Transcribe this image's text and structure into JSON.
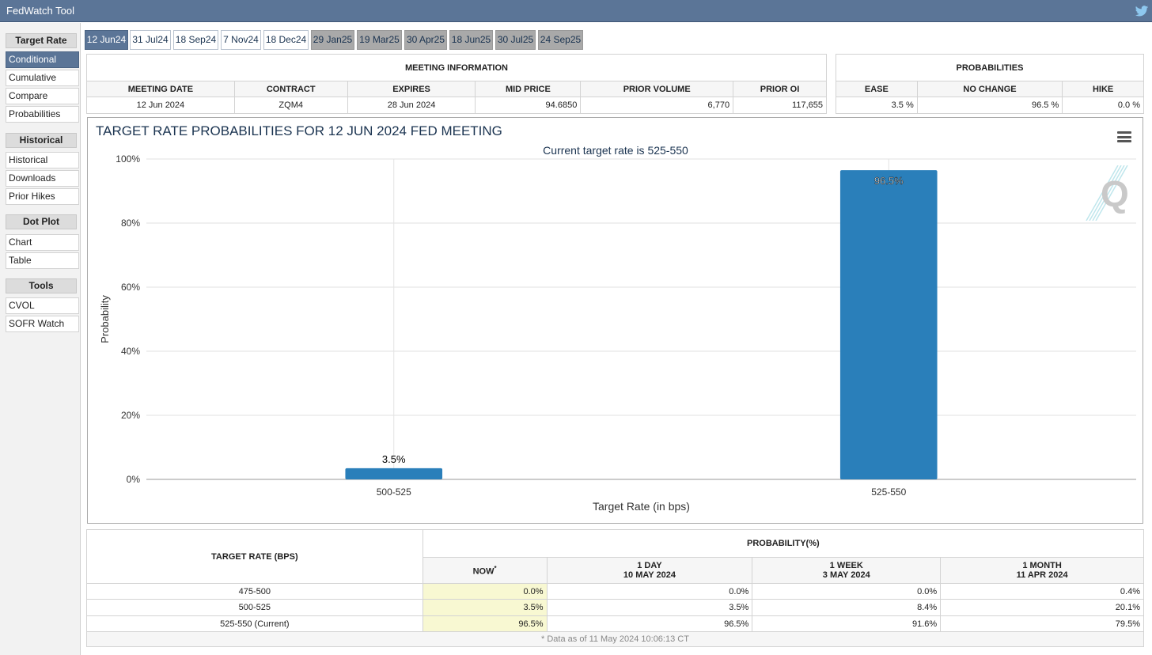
{
  "window": {
    "title": "FedWatch Tool",
    "twitter_icon": "twitter-icon"
  },
  "sidebar": {
    "sections": [
      {
        "heading": "Target Rate",
        "items": [
          "Conditional",
          "Cumulative",
          "Compare",
          "Probabilities"
        ]
      },
      {
        "heading": "Historical",
        "items": [
          "Historical",
          "Downloads",
          "Prior Hikes"
        ]
      },
      {
        "heading": "Dot Plot",
        "items": [
          "Chart",
          "Table"
        ]
      },
      {
        "heading": "Tools",
        "items": [
          "CVOL",
          "SOFR Watch"
        ]
      }
    ],
    "active_item": "Conditional"
  },
  "tabs": [
    "12 Jun24",
    "31 Jul24",
    "18 Sep24",
    "7 Nov24",
    "18 Dec24",
    "29 Jan25",
    "19 Mar25",
    "30 Apr25",
    "18 Jun25",
    "30 Jul25",
    "24 Sep25"
  ],
  "meeting_info": {
    "title": "MEETING INFORMATION",
    "headers": [
      "MEETING DATE",
      "CONTRACT",
      "EXPIRES",
      "MID PRICE",
      "PRIOR VOLUME",
      "PRIOR OI"
    ],
    "row": [
      "12 Jun 2024",
      "ZQM4",
      "28 Jun 2024",
      "94.6850",
      "6,770",
      "117,655"
    ]
  },
  "probabilities": {
    "title": "PROBABILITIES",
    "headers": [
      "EASE",
      "NO CHANGE",
      "HIKE"
    ],
    "row": [
      "3.5 %",
      "96.5 %",
      "0.0 %"
    ]
  },
  "chart_data": {
    "type": "bar",
    "title": "TARGET RATE PROBABILITIES FOR 12 JUN 2024 FED MEETING",
    "subtitle": "Current target rate is 525-550",
    "xlabel": "Target Rate (in bps)",
    "ylabel": "Probability",
    "categories": [
      "500-525",
      "525-550"
    ],
    "values": [
      3.5,
      96.5
    ],
    "data_labels": [
      "3.5%",
      "96.5%"
    ],
    "ylim": [
      0,
      100
    ],
    "yticks": [
      0,
      20,
      40,
      60,
      80,
      100
    ],
    "ytick_labels": [
      "0%",
      "20%",
      "40%",
      "60%",
      "80%",
      "100%"
    ],
    "grid": true,
    "bar_color": "#2a7fba"
  },
  "prob_table": {
    "target_header": "TARGET RATE (BPS)",
    "prob_header": "PROBABILITY(%)",
    "cols": [
      {
        "line1": "NOW",
        "line2": "",
        "star": "*"
      },
      {
        "line1": "1 DAY",
        "line2": "10 MAY 2024",
        "star": ""
      },
      {
        "line1": "1 WEEK",
        "line2": "3 MAY 2024",
        "star": ""
      },
      {
        "line1": "1 MONTH",
        "line2": "11 APR 2024",
        "star": ""
      }
    ],
    "rows": [
      {
        "rate": "475-500",
        "vals": [
          "0.0%",
          "0.0%",
          "0.0%",
          "0.4%"
        ]
      },
      {
        "rate": "500-525",
        "vals": [
          "3.5%",
          "3.5%",
          "8.4%",
          "20.1%"
        ]
      },
      {
        "rate": "525-550 (Current)",
        "vals": [
          "96.5%",
          "96.5%",
          "91.6%",
          "79.5%"
        ]
      }
    ],
    "note": "* Data as of 11 May 2024 10:06:13 CT"
  }
}
